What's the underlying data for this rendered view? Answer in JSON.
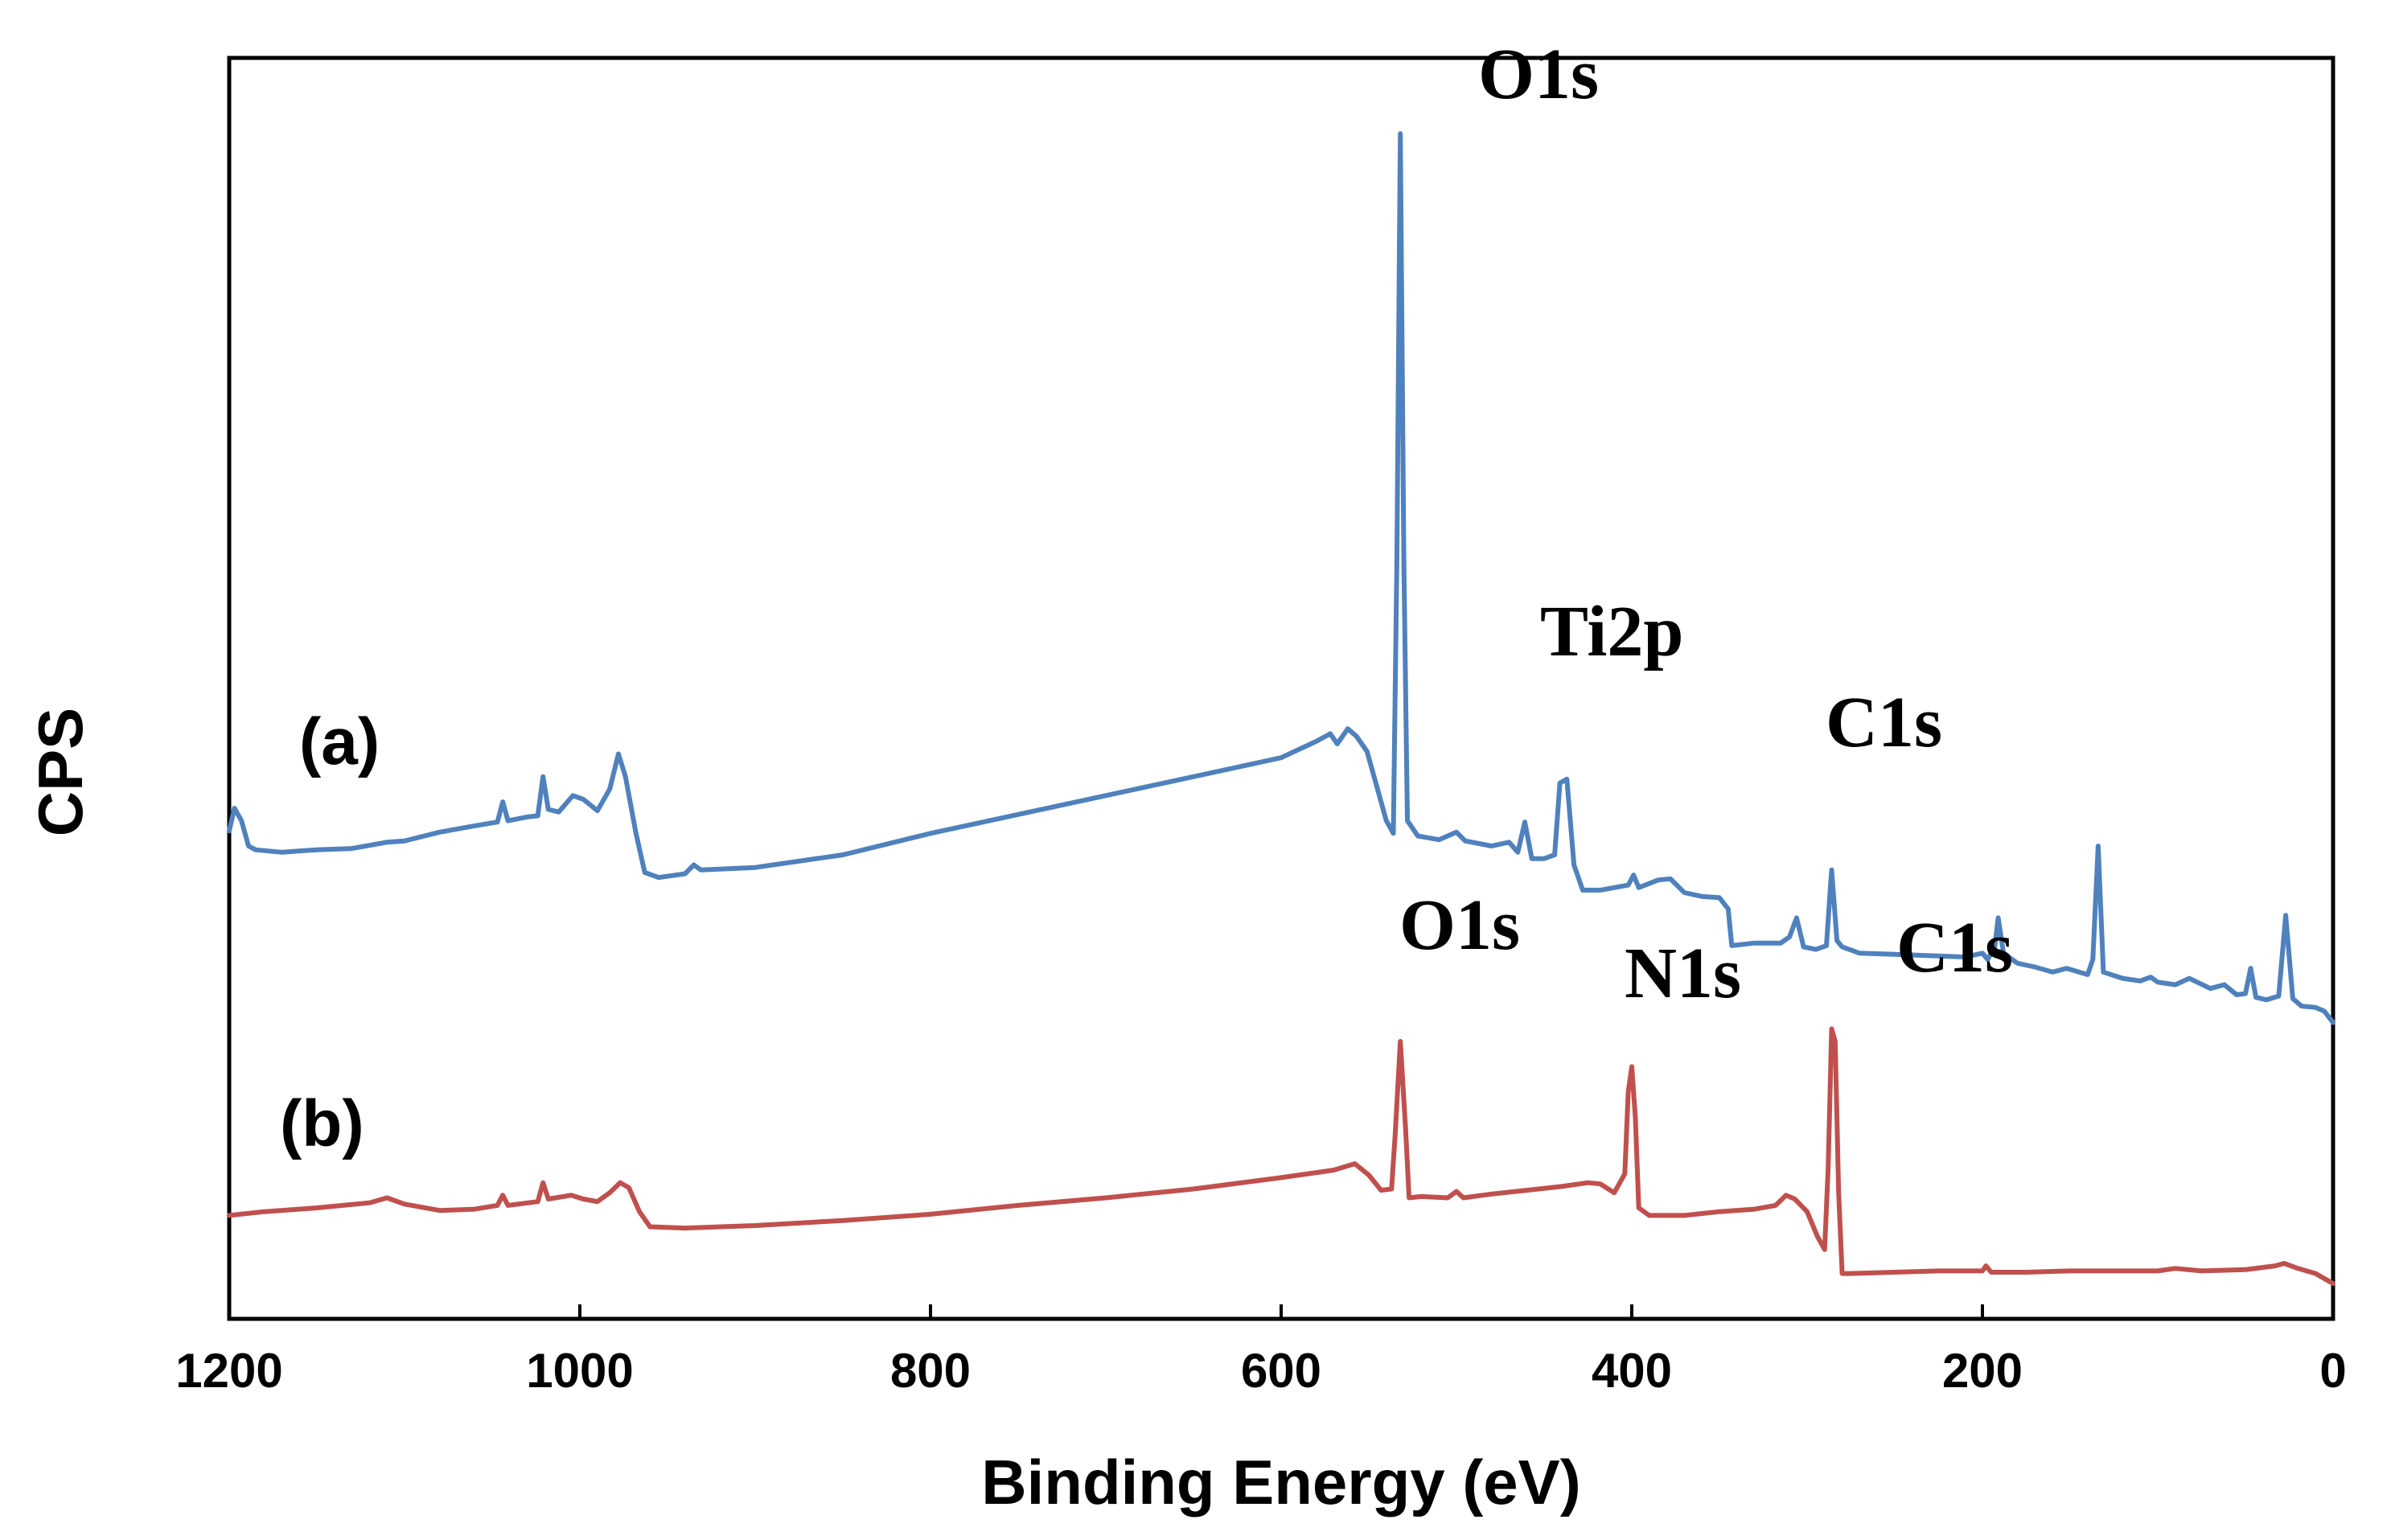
{
  "chart_data": {
    "type": "line",
    "xlabel": "Binding Energy (eV)",
    "ylabel": "CPS",
    "xlim": [
      1200,
      0
    ],
    "x_reversed": true,
    "ylim": [
      0,
      100
    ],
    "x_ticks": [
      1200,
      1000,
      800,
      600,
      400,
      200,
      0
    ],
    "x_tick_labels": [
      "1200",
      "1000",
      "800",
      "600",
      "400",
      "200",
      "0"
    ],
    "y_ticks_shown": false,
    "grid": false,
    "series": [
      {
        "name": "(a)",
        "label": "(a)",
        "color": "#4f81bd",
        "points": [
          [
            1200,
            38.7
          ],
          [
            1197,
            40.5
          ],
          [
            1193,
            39.5
          ],
          [
            1189,
            37.5
          ],
          [
            1185,
            37.2
          ],
          [
            1170,
            37.0
          ],
          [
            1150,
            37.2
          ],
          [
            1130,
            37.3
          ],
          [
            1110,
            37.8
          ],
          [
            1100,
            37.9
          ],
          [
            1080,
            38.6
          ],
          [
            1060,
            39.1
          ],
          [
            1047,
            39.4
          ],
          [
            1044,
            41.0
          ],
          [
            1041,
            39.5
          ],
          [
            1030,
            39.8
          ],
          [
            1024,
            39.9
          ],
          [
            1021,
            43.0
          ],
          [
            1018,
            40.4
          ],
          [
            1012,
            40.2
          ],
          [
            1004,
            41.5
          ],
          [
            998,
            41.2
          ],
          [
            990,
            40.3
          ],
          [
            983,
            42.0
          ],
          [
            978,
            44.8
          ],
          [
            974,
            43.0
          ],
          [
            968,
            38.5
          ],
          [
            963,
            35.4
          ],
          [
            955,
            35.0
          ],
          [
            940,
            35.3
          ],
          [
            935,
            36.0
          ],
          [
            931,
            35.6
          ],
          [
            900,
            35.8
          ],
          [
            850,
            36.8
          ],
          [
            800,
            38.5
          ],
          [
            750,
            40.0
          ],
          [
            700,
            41.5
          ],
          [
            650,
            43.0
          ],
          [
            600,
            44.5
          ],
          [
            580,
            45.8
          ],
          [
            572,
            46.4
          ],
          [
            568,
            45.6
          ],
          [
            562,
            46.8
          ],
          [
            557,
            46.2
          ],
          [
            551,
            45.0
          ],
          [
            545,
            42.0
          ],
          [
            540,
            39.5
          ],
          [
            536,
            38.5
          ],
          [
            534,
            60.0
          ],
          [
            532,
            94.0
          ],
          [
            530,
            60.0
          ],
          [
            528,
            39.5
          ],
          [
            522,
            38.3
          ],
          [
            510,
            38.0
          ],
          [
            500,
            38.6
          ],
          [
            495,
            37.9
          ],
          [
            480,
            37.5
          ],
          [
            470,
            37.8
          ],
          [
            465,
            37.0
          ],
          [
            461,
            39.4
          ],
          [
            457,
            36.5
          ],
          [
            450,
            36.5
          ],
          [
            444,
            36.8
          ],
          [
            441,
            42.5
          ],
          [
            437,
            42.8
          ],
          [
            433,
            36.0
          ],
          [
            428,
            34.0
          ],
          [
            418,
            34.0
          ],
          [
            402,
            34.4
          ],
          [
            399,
            35.2
          ],
          [
            396,
            34.2
          ],
          [
            385,
            34.8
          ],
          [
            378,
            34.9
          ],
          [
            370,
            33.8
          ],
          [
            360,
            33.5
          ],
          [
            350,
            33.4
          ],
          [
            345,
            32.5
          ],
          [
            343,
            29.6
          ],
          [
            330,
            29.8
          ],
          [
            315,
            29.8
          ],
          [
            310,
            30.3
          ],
          [
            306,
            31.8
          ],
          [
            302,
            29.5
          ],
          [
            295,
            29.3
          ],
          [
            289,
            29.6
          ],
          [
            286,
            35.6
          ],
          [
            283,
            30.0
          ],
          [
            280,
            29.5
          ],
          [
            270,
            29.0
          ],
          [
            250,
            28.9
          ],
          [
            230,
            28.8
          ],
          [
            210,
            28.7
          ],
          [
            200,
            29.0
          ],
          [
            197,
            28.5
          ],
          [
            193,
            29.5
          ],
          [
            191,
            31.8
          ],
          [
            188,
            29.0
          ],
          [
            180,
            28.2
          ],
          [
            170,
            27.9
          ],
          [
            160,
            27.5
          ],
          [
            152,
            27.8
          ],
          [
            140,
            27.3
          ],
          [
            137,
            28.5
          ],
          [
            134,
            37.5
          ],
          [
            131,
            27.5
          ],
          [
            120,
            27.0
          ],
          [
            110,
            26.8
          ],
          [
            104,
            27.1
          ],
          [
            100,
            26.7
          ],
          [
            90,
            26.5
          ],
          [
            82,
            27.0
          ],
          [
            70,
            26.2
          ],
          [
            62,
            26.5
          ],
          [
            55,
            25.7
          ],
          [
            50,
            25.8
          ],
          [
            47,
            27.8
          ],
          [
            44,
            25.5
          ],
          [
            38,
            25.3
          ],
          [
            31,
            25.6
          ],
          [
            27,
            32.0
          ],
          [
            23,
            25.4
          ],
          [
            18,
            24.8
          ],
          [
            10,
            24.7
          ],
          [
            5,
            24.4
          ],
          [
            0,
            23.5
          ]
        ]
      },
      {
        "name": "(b)",
        "label": "(b)",
        "color": "#c0504d",
        "points": [
          [
            1200,
            8.2
          ],
          [
            1180,
            8.5
          ],
          [
            1150,
            8.8
          ],
          [
            1120,
            9.2
          ],
          [
            1110,
            9.6
          ],
          [
            1100,
            9.1
          ],
          [
            1080,
            8.6
          ],
          [
            1060,
            8.7
          ],
          [
            1047,
            9.0
          ],
          [
            1044,
            9.8
          ],
          [
            1041,
            9.0
          ],
          [
            1024,
            9.3
          ],
          [
            1021,
            10.8
          ],
          [
            1018,
            9.5
          ],
          [
            1005,
            9.8
          ],
          [
            998,
            9.5
          ],
          [
            990,
            9.3
          ],
          [
            983,
            10.0
          ],
          [
            977,
            10.8
          ],
          [
            972,
            10.4
          ],
          [
            966,
            8.5
          ],
          [
            960,
            7.3
          ],
          [
            940,
            7.2
          ],
          [
            900,
            7.4
          ],
          [
            850,
            7.8
          ],
          [
            800,
            8.3
          ],
          [
            750,
            9.0
          ],
          [
            700,
            9.6
          ],
          [
            650,
            10.3
          ],
          [
            600,
            11.2
          ],
          [
            570,
            11.8
          ],
          [
            558,
            12.3
          ],
          [
            550,
            11.4
          ],
          [
            543,
            10.2
          ],
          [
            537,
            10.3
          ],
          [
            535,
            14.5
          ],
          [
            532,
            22.0
          ],
          [
            529,
            15.0
          ],
          [
            527,
            9.6
          ],
          [
            520,
            9.7
          ],
          [
            505,
            9.6
          ],
          [
            500,
            10.1
          ],
          [
            496,
            9.6
          ],
          [
            480,
            9.9
          ],
          [
            460,
            10.2
          ],
          [
            440,
            10.5
          ],
          [
            425,
            10.8
          ],
          [
            418,
            10.7
          ],
          [
            410,
            10.0
          ],
          [
            404,
            11.5
          ],
          [
            402,
            18.0
          ],
          [
            400,
            20.0
          ],
          [
            398,
            16.0
          ],
          [
            396,
            8.8
          ],
          [
            390,
            8.2
          ],
          [
            370,
            8.2
          ],
          [
            350,
            8.5
          ],
          [
            330,
            8.7
          ],
          [
            318,
            9.0
          ],
          [
            312,
            9.8
          ],
          [
            307,
            9.5
          ],
          [
            300,
            8.5
          ],
          [
            294,
            6.5
          ],
          [
            290,
            5.5
          ],
          [
            288,
            12.0
          ],
          [
            286,
            23.0
          ],
          [
            284,
            22.0
          ],
          [
            282,
            10.0
          ],
          [
            280,
            3.6
          ],
          [
            275,
            3.6
          ],
          [
            250,
            3.7
          ],
          [
            225,
            3.8
          ],
          [
            200,
            3.8
          ],
          [
            198,
            4.2
          ],
          [
            195,
            3.7
          ],
          [
            175,
            3.7
          ],
          [
            150,
            3.8
          ],
          [
            125,
            3.8
          ],
          [
            100,
            3.8
          ],
          [
            90,
            4.0
          ],
          [
            75,
            3.8
          ],
          [
            50,
            3.9
          ],
          [
            33,
            4.2
          ],
          [
            28,
            4.4
          ],
          [
            20,
            4.0
          ],
          [
            10,
            3.6
          ],
          [
            0,
            2.8
          ]
        ]
      }
    ],
    "annotations": [
      {
        "text": "O1s",
        "series": "(a)",
        "energy": 532
      },
      {
        "text": "Ti2p",
        "series": "(a)",
        "energy": 459
      },
      {
        "text": "C1s",
        "series": "(a)",
        "energy": 285
      },
      {
        "text": "O1s",
        "series": "(b)",
        "energy": 532
      },
      {
        "text": "N1s",
        "series": "(b)",
        "energy": 400
      },
      {
        "text": "C1s",
        "series": "(b)",
        "energy": 285
      }
    ]
  }
}
